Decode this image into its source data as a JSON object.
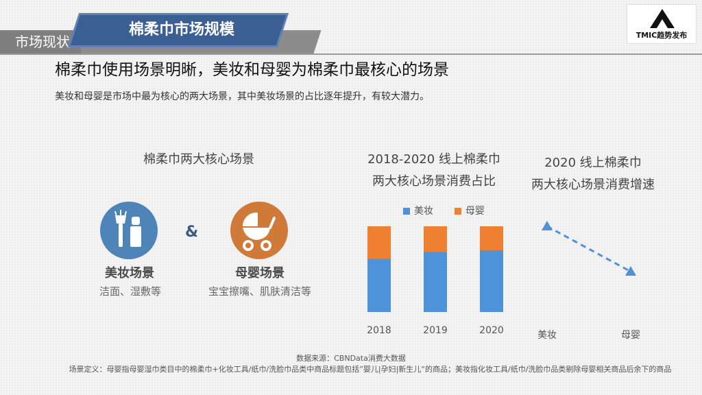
{
  "header": {
    "section_tag": "市场现状",
    "title": "棉柔巾市场规模",
    "logo_text": "TMIC趋势发布"
  },
  "headline": "棉柔巾使用场景明晰，美妆和母婴为棉柔巾最核心的场景",
  "subtext": "美妆和母婴是市场中最为核心的两大场景，其中美妆场景的占比逐年提升，有较大潜力。",
  "panel_left": {
    "title": "棉柔巾两大核心场景",
    "amp": "&",
    "scene_beauty": {
      "label": "美妆场景",
      "sub": "洁面、湿敷等",
      "icon": "makeup-brush-icon",
      "color": "#4e84b8"
    },
    "scene_baby": {
      "label": "母婴场景",
      "sub": "宝宝擦嘴、肌肤清洁等",
      "icon": "baby-stroller-icon",
      "color": "#d07a3a"
    }
  },
  "chart_data": [
    {
      "type": "bar",
      "stacked": true,
      "title_line1": "2018-2020 线上棉柔巾",
      "title_line2": "两大核心场景消费占比",
      "categories": [
        "2018",
        "2019",
        "2020"
      ],
      "series": [
        {
          "name": "美妆",
          "values": [
            0.62,
            0.7,
            0.72
          ],
          "color": "#4e93d9"
        },
        {
          "name": "母婴",
          "values": [
            0.38,
            0.3,
            0.28
          ],
          "color": "#ef7f31"
        }
      ],
      "ylim": [
        0,
        1
      ],
      "legend_position": "top",
      "grid": false
    },
    {
      "type": "line",
      "title_line1": "2020 线上棉柔巾",
      "title_line2": "两大核心场景消费增速",
      "categories": [
        "美妆",
        "母婴"
      ],
      "values": [
        1,
        0
      ],
      "color": "#4e93d9",
      "line_style": "dashed",
      "marker": "triangle"
    }
  ],
  "footer": {
    "source": "数据来源：CBNData消费大数据",
    "definition": "场景定义：母婴指母婴湿巾类目中的棉柔巾+化妆工具/纸巾/洗脸巾品类中商品标题包括”婴儿|孕妇|新生儿“的商品；美妆指化妆工具/纸巾/洗脸巾品类剔除母婴相关商品后余下的商品"
  }
}
